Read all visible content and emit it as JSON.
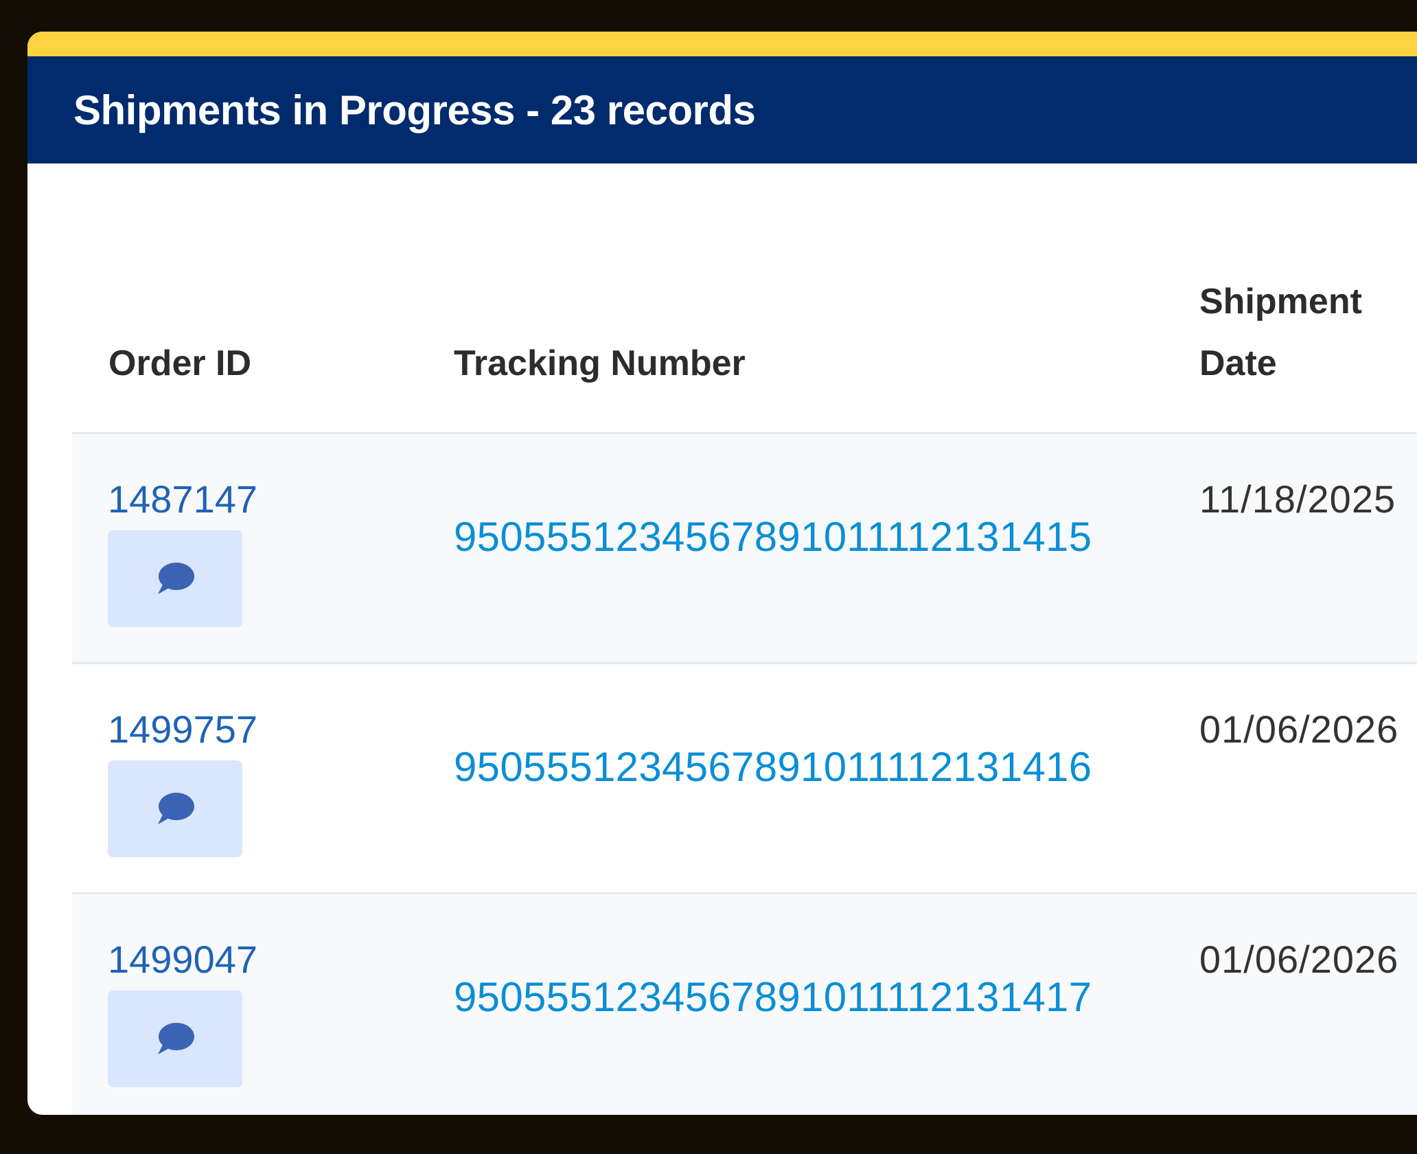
{
  "header": {
    "title": "Shipments in Progress - 23 records"
  },
  "colors": {
    "accent": "#ffd33f",
    "banner": "#002b6d",
    "order_link": "#1f63b5",
    "tracking_link": "#0a8ed6",
    "note_button": "#d9e6fd"
  },
  "table": {
    "columns": [
      "Order ID",
      "Tracking Number",
      "Shipment",
      "Date"
    ],
    "rows": [
      {
        "order_id": "1487147",
        "tracking": "9505551234567891011112131415",
        "date": "11/18/2025",
        "icon": "comment-icon"
      },
      {
        "order_id": "1499757",
        "tracking": "9505551234567891011112131416",
        "date": "01/06/2026",
        "icon": "comment-icon"
      },
      {
        "order_id": "1499047",
        "tracking": "9505551234567891011112131417",
        "date": "01/06/2026",
        "icon": "comment-icon"
      }
    ]
  }
}
